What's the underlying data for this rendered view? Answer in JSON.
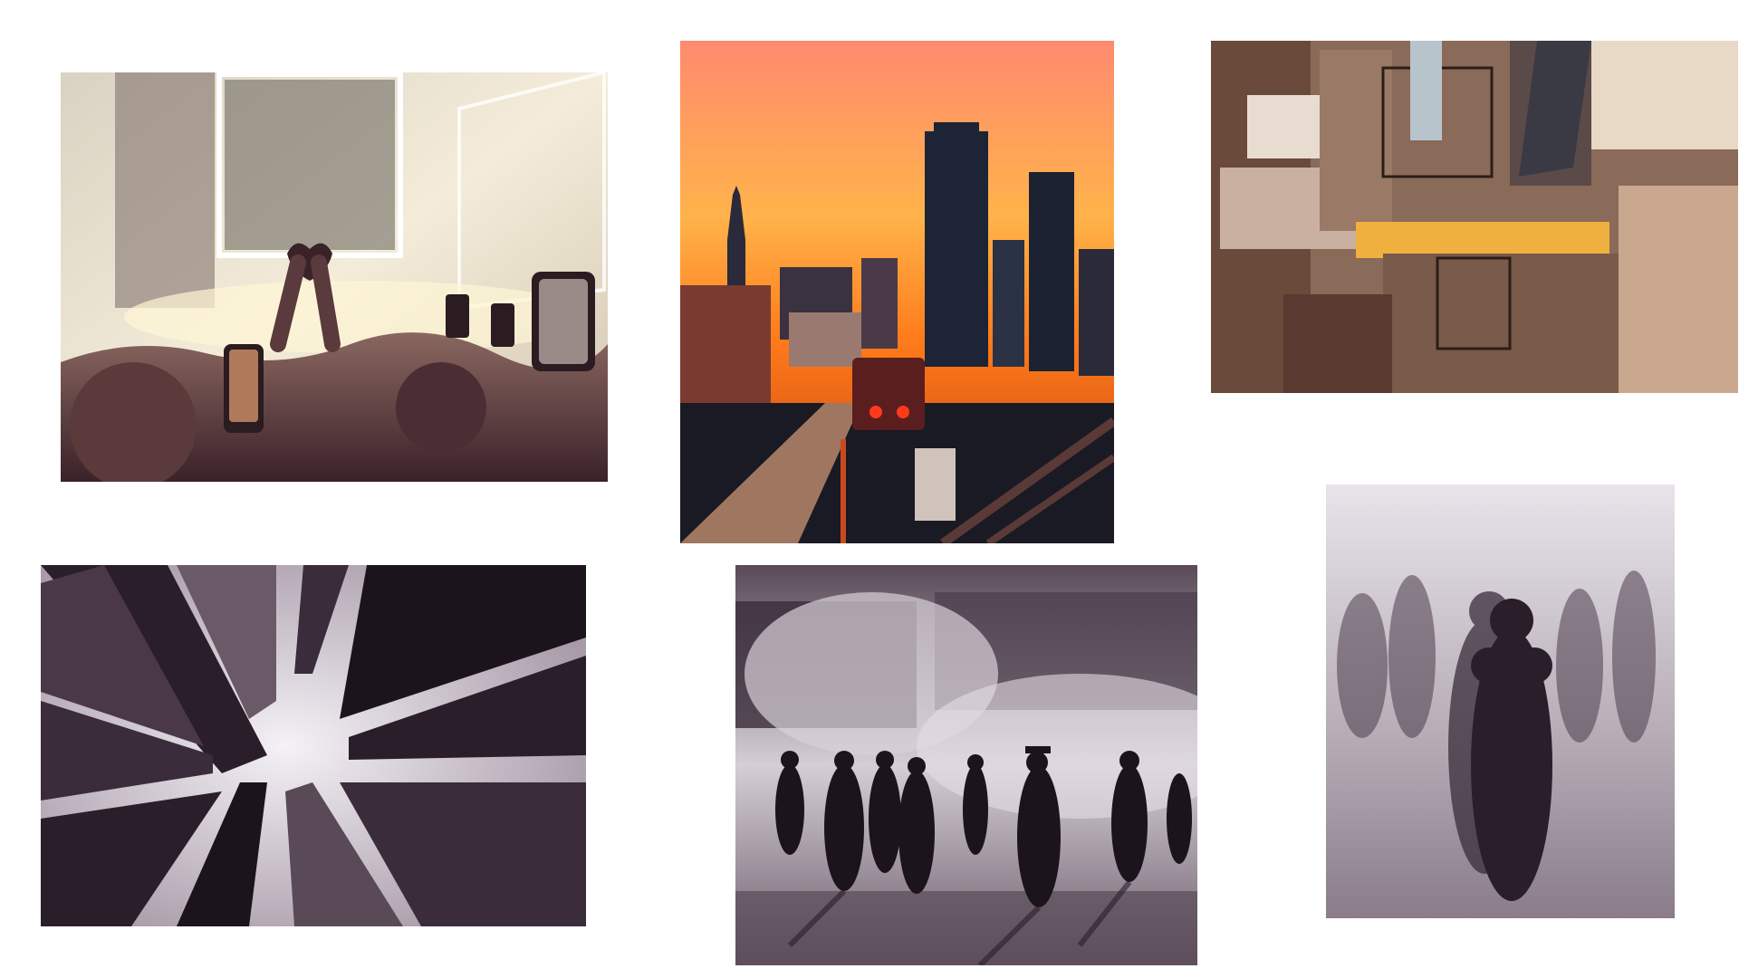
{
  "collage": {
    "background": "#ffffff",
    "photos": [
      {
        "subject": "concert-crowd",
        "palette": [
          "#f3e9d8",
          "#8a6a5e",
          "#3a2430"
        ]
      },
      {
        "subject": "city-sunset-train",
        "palette": [
          "#ff7a1a",
          "#ffb23a",
          "#1a2233"
        ]
      },
      {
        "subject": "rooftops-aerial",
        "palette": [
          "#caa98a",
          "#6b4a3a",
          "#f0c060"
        ]
      },
      {
        "subject": "skyscrapers-looking-up",
        "palette": [
          "#e8e4ec",
          "#4a3848",
          "#1c141c"
        ]
      },
      {
        "subject": "steam-street-silhouettes",
        "palette": [
          "#d9d4dc",
          "#6a5a68",
          "#161016"
        ]
      },
      {
        "subject": "ghostly-figures",
        "palette": [
          "#e6e2e8",
          "#7a6c7a",
          "#2a1e2a"
        ]
      }
    ]
  }
}
